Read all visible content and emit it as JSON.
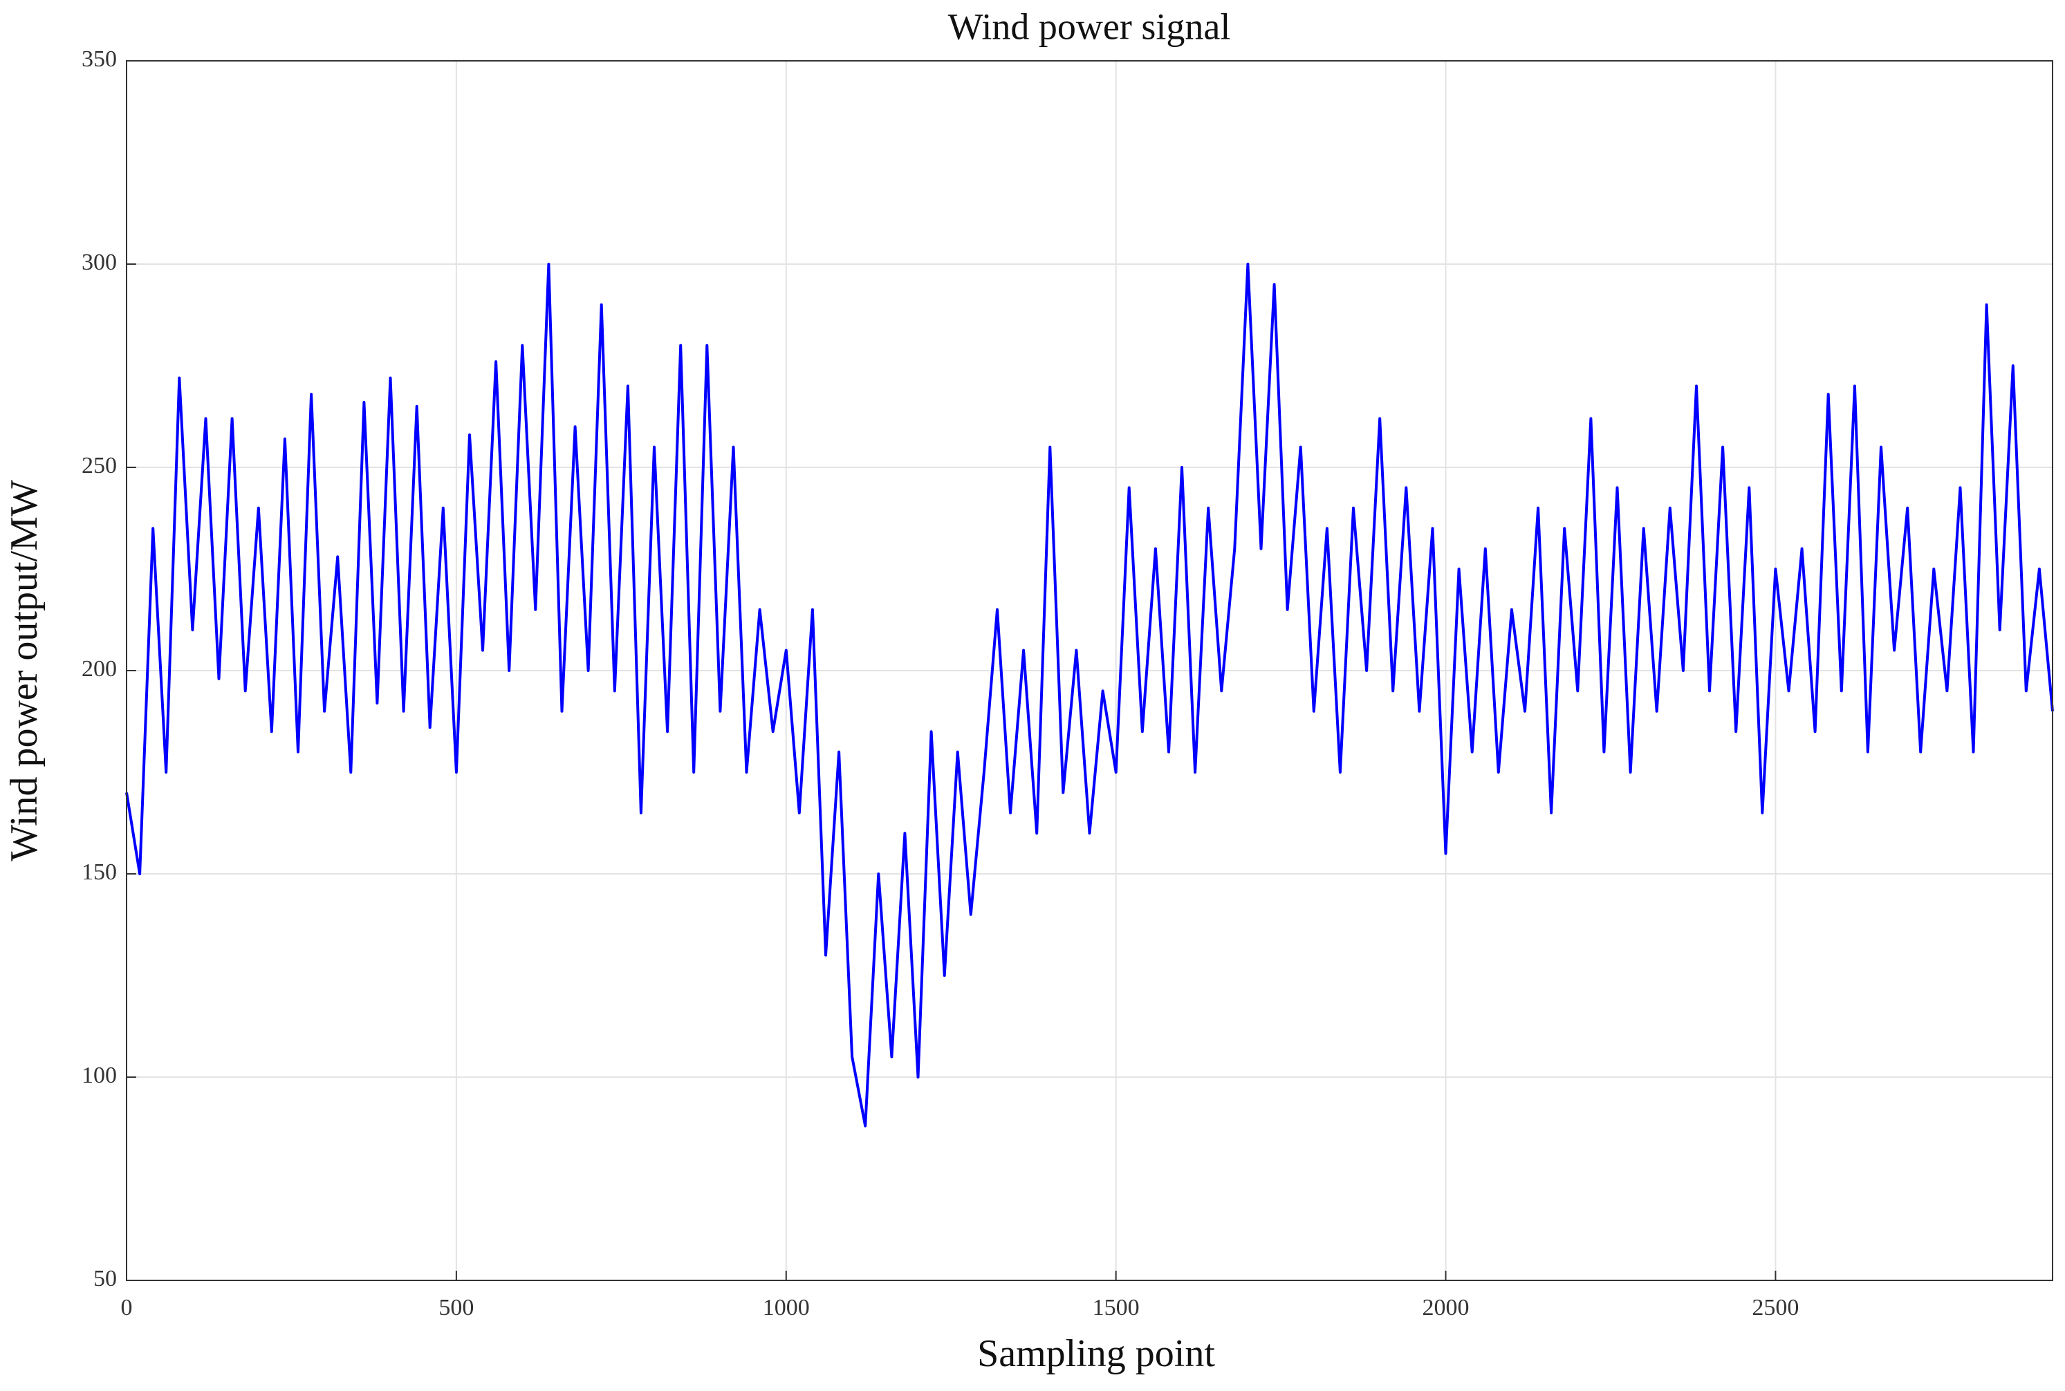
{
  "chart_data": {
    "type": "line",
    "title": "Wind power signal",
    "x_label": "Sampling point",
    "y_label": "Wind power output/MW",
    "xlim": [
      0,
      2920
    ],
    "ylim": [
      50,
      350
    ],
    "xticks": [
      0,
      500,
      1000,
      1500,
      2000,
      2500
    ],
    "yticks": [
      50,
      100,
      150,
      200,
      250,
      300,
      350
    ],
    "grid": true,
    "x": [
      0,
      20,
      40,
      60,
      80,
      100,
      120,
      140,
      160,
      180,
      200,
      220,
      240,
      260,
      280,
      300,
      320,
      340,
      360,
      380,
      400,
      420,
      440,
      460,
      480,
      500,
      520,
      540,
      560,
      580,
      600,
      620,
      640,
      660,
      680,
      700,
      720,
      740,
      760,
      780,
      800,
      820,
      840,
      860,
      880,
      900,
      920,
      940,
      960,
      980,
      1000,
      1020,
      1040,
      1060,
      1080,
      1100,
      1120,
      1140,
      1160,
      1180,
      1200,
      1220,
      1240,
      1260,
      1280,
      1300,
      1320,
      1340,
      1360,
      1380,
      1400,
      1420,
      1440,
      1460,
      1480,
      1500,
      1520,
      1540,
      1560,
      1580,
      1600,
      1620,
      1640,
      1660,
      1680,
      1700,
      1720,
      1740,
      1760,
      1780,
      1800,
      1820,
      1840,
      1860,
      1880,
      1900,
      1920,
      1940,
      1960,
      1980,
      2000,
      2020,
      2040,
      2060,
      2080,
      2100,
      2120,
      2140,
      2160,
      2180,
      2200,
      2220,
      2240,
      2260,
      2280,
      2300,
      2320,
      2340,
      2360,
      2380,
      2400,
      2420,
      2440,
      2460,
      2480,
      2500,
      2520,
      2540,
      2560,
      2580,
      2600,
      2620,
      2640,
      2660,
      2680,
      2700,
      2720,
      2740,
      2760,
      2780,
      2800,
      2820,
      2840,
      2860,
      2880,
      2900,
      2920
    ],
    "series": [
      {
        "color": "#0000ff",
        "values": [
          170,
          150,
          235,
          175,
          272,
          210,
          262,
          198,
          262,
          195,
          240,
          185,
          257,
          180,
          268,
          190,
          228,
          175,
          266,
          192,
          272,
          190,
          265,
          186,
          240,
          175,
          258,
          205,
          276,
          200,
          280,
          215,
          300,
          190,
          260,
          200,
          290,
          195,
          270,
          165,
          255,
          185,
          280,
          175,
          280,
          190,
          255,
          175,
          215,
          185,
          205,
          165,
          215,
          130,
          180,
          105,
          88,
          150,
          105,
          160,
          100,
          185,
          125,
          180,
          140,
          175,
          215,
          165,
          205,
          160,
          255,
          170,
          205,
          160,
          195,
          175,
          245,
          185,
          230,
          180,
          250,
          175,
          240,
          195,
          230,
          300,
          230,
          295,
          215,
          255,
          190,
          235,
          175,
          240,
          200,
          262,
          195,
          245,
          190,
          235,
          155,
          225,
          180,
          230,
          175,
          215,
          190,
          240,
          165,
          235,
          195,
          262,
          180,
          245,
          175,
          235,
          190,
          240,
          200,
          270,
          195,
          255,
          185,
          245,
          165,
          225,
          195,
          230,
          185,
          268,
          195,
          270,
          180,
          255,
          205,
          240,
          180,
          225,
          195,
          245,
          180,
          290,
          210,
          275,
          195,
          225,
          190
        ]
      }
    ]
  }
}
